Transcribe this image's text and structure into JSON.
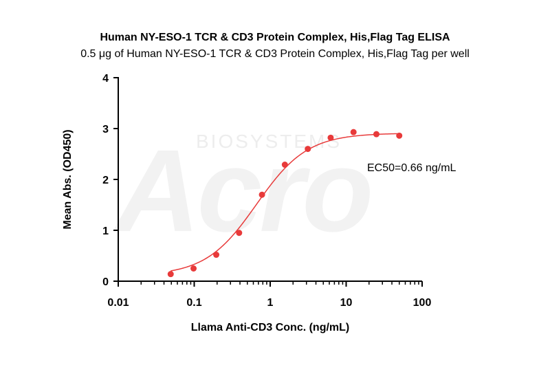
{
  "chart_data": {
    "type": "scatter",
    "title": "Human NY-ESO-1 TCR & CD3 Protein Complex, His,Flag Tag ELISA",
    "subtitle": "0.5 μg of Human NY-ESO-1 TCR & CD3 Protein Complex, His,Flag Tag per well",
    "xlabel": "Llama Anti-CD3 Conc. (ng/mL)",
    "ylabel": "Mean Abs. (OD450)",
    "x_scale": "log",
    "xlim": [
      0.01,
      100
    ],
    "ylim": [
      0,
      4
    ],
    "x_ticks": [
      "0.01",
      "0.1",
      "1",
      "10",
      "100"
    ],
    "y_ticks": [
      "0",
      "1",
      "2",
      "3",
      "4"
    ],
    "annotation": "EC50=0.66 ng/mL",
    "watermark": "Acro BIOSYSTEMS",
    "color": "#e83a3a",
    "series": [
      {
        "x": [
          0.049,
          0.098,
          0.195,
          0.39,
          0.78,
          1.56,
          3.13,
          6.25,
          12.5,
          25,
          50
        ],
        "y": [
          0.14,
          0.25,
          0.52,
          0.95,
          1.7,
          2.29,
          2.6,
          2.82,
          2.93,
          2.89,
          2.86
        ]
      }
    ],
    "fit": {
      "bottom": 0.11,
      "top": 2.91,
      "ec50": 0.66,
      "hill": 1.3
    }
  }
}
